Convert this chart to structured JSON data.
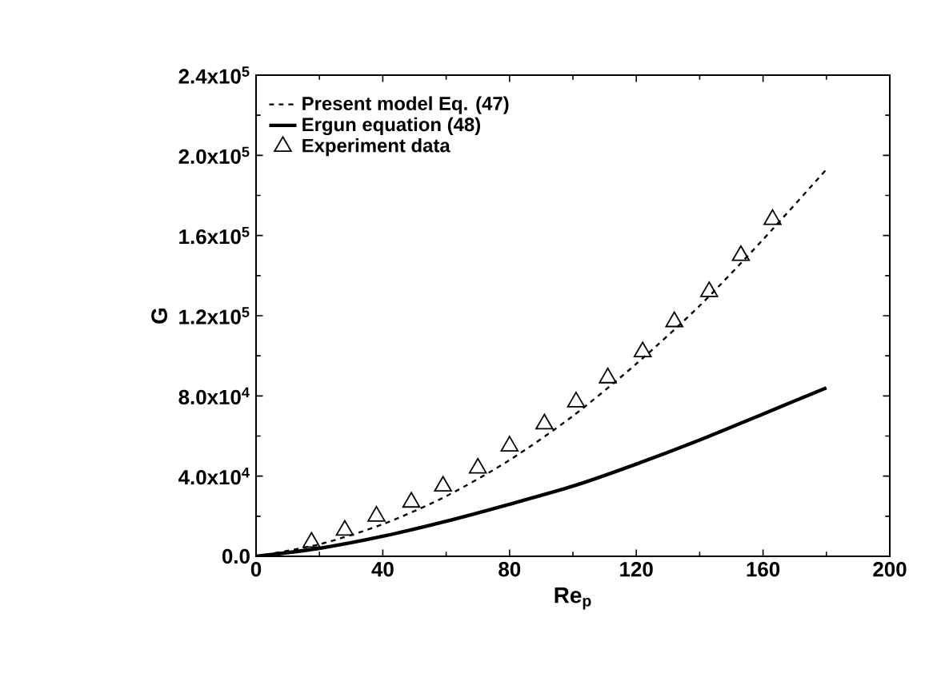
{
  "chart_data": {
    "type": "line",
    "xlabel": "Re$_{p}$",
    "ylabel": "G",
    "xlim": [
      0,
      200
    ],
    "xticks": [
      0,
      40,
      80,
      120,
      160,
      200
    ],
    "ylim": [
      0,
      240000
    ],
    "yticks": [
      {
        "value": 0,
        "label": "0.0"
      },
      {
        "value": 40000,
        "label": "4.0x10$^{4}$"
      },
      {
        "value": 80000,
        "label": "8.0x10$^{4}$"
      },
      {
        "value": 120000,
        "label": "1.2x10$^{5}$"
      },
      {
        "value": 160000,
        "label": "1.6x10$^{5}$"
      },
      {
        "value": 200000,
        "label": "2.0x10$^{5}$"
      },
      {
        "value": 240000,
        "label": "2.4x10$^{5}$"
      }
    ],
    "legend": "top left",
    "grid": false,
    "series": [
      {
        "name": "Present model Eq. (47)",
        "color": "#000000",
        "line_style": "dashed",
        "x": [
          0,
          20,
          40,
          60,
          80,
          100,
          120,
          140,
          160,
          180
        ],
        "values": [
          0,
          6000,
          16000,
          30000,
          48000,
          70000,
          96000,
          125000,
          158000,
          193000
        ]
      },
      {
        "name": "Ergun equation (48)",
        "color": "#000000",
        "line_style": "solid",
        "x": [
          0,
          20,
          40,
          60,
          80,
          100,
          120,
          140,
          160,
          180
        ],
        "values": [
          0,
          4000,
          10000,
          17500,
          26000,
          35000,
          46000,
          58000,
          71000,
          84000
        ]
      },
      {
        "name": "Experiment data",
        "color": "#000000",
        "type": "scatter",
        "marker": "triangle",
        "x": [
          17.5,
          28,
          38,
          49,
          59,
          70,
          80,
          91,
          101,
          111,
          122,
          132,
          143,
          153,
          163
        ],
        "values": [
          7000,
          13000,
          20000,
          27000,
          35000,
          44000,
          55000,
          66000,
          77000,
          89000,
          102000,
          117000,
          132000,
          150000,
          168000
        ]
      }
    ]
  }
}
